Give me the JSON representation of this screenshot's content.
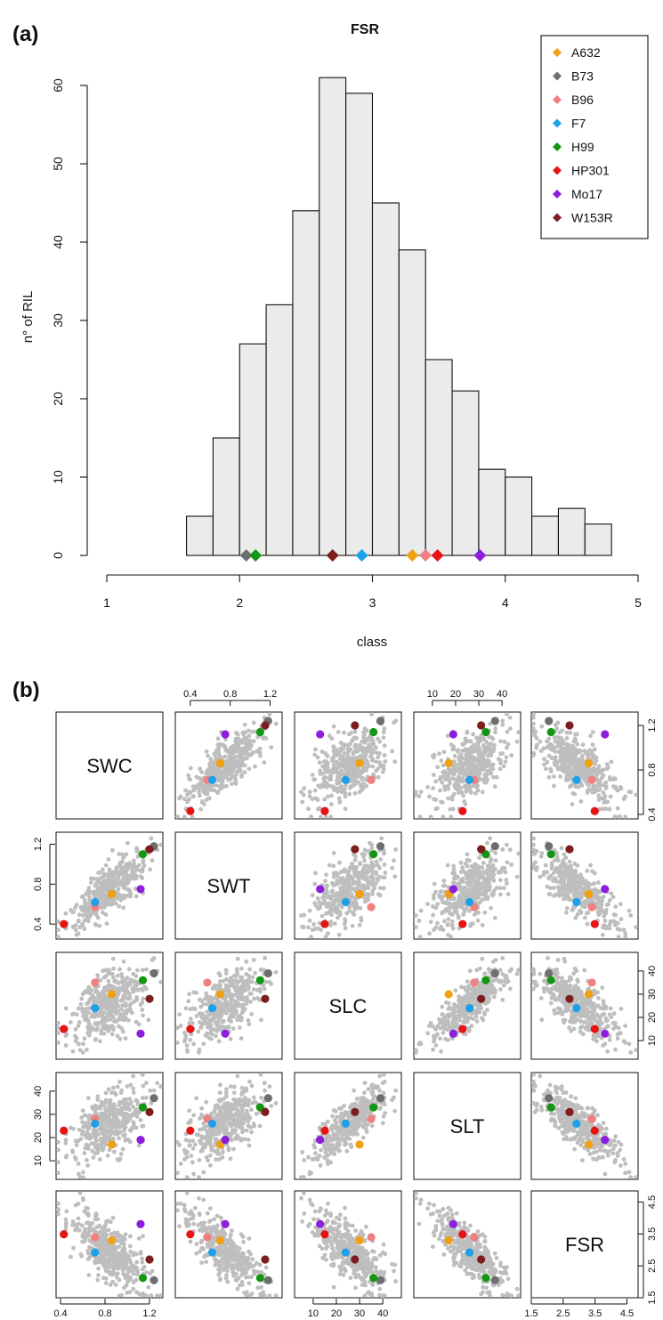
{
  "panel_labels": {
    "a": "(a)",
    "b": "(b)"
  },
  "chart_data": [
    {
      "type": "bar",
      "title": "FSR",
      "xlabel": "class",
      "ylabel": "n° of RIL",
      "bin_edges": [
        1.6,
        1.8,
        2.0,
        2.2,
        2.4,
        2.6,
        2.8,
        3.0,
        3.2,
        3.4,
        3.6,
        3.8,
        4.0,
        4.2,
        4.4,
        4.6,
        4.8
      ],
      "values": [
        5,
        15,
        27,
        32,
        44,
        61,
        59,
        45,
        39,
        25,
        21,
        11,
        10,
        5,
        6,
        4
      ],
      "xlim": [
        1,
        5
      ],
      "ylim": [
        0,
        60
      ],
      "x_ticks": [
        1,
        2,
        3,
        4,
        5
      ],
      "y_ticks": [
        0,
        10,
        20,
        30,
        40,
        50,
        60
      ],
      "bar_color": "#ebebeb",
      "legend_position": "top-right",
      "parents": [
        {
          "name": "A632",
          "color": "#f0a010",
          "fsr": 3.3
        },
        {
          "name": "B73",
          "color": "#6e6e6e",
          "fsr": 2.05
        },
        {
          "name": "B96",
          "color": "#f08080",
          "fsr": 3.4
        },
        {
          "name": "F7",
          "color": "#1ea0e8",
          "fsr": 2.92
        },
        {
          "name": "H99",
          "color": "#149614",
          "fsr": 2.12
        },
        {
          "name": "HP301",
          "color": "#e61414",
          "fsr": 3.49
        },
        {
          "name": "Mo17",
          "color": "#8c1edc",
          "fsr": 3.81
        },
        {
          "name": "W153R",
          "color": "#7d1e1e",
          "fsr": 2.7
        }
      ]
    },
    {
      "type": "scatter",
      "variables": [
        "SWC",
        "SWT",
        "SLC",
        "SLT",
        "FSR"
      ],
      "ranges": [
        [
          0.36,
          1.32
        ],
        [
          0.25,
          1.32
        ],
        [
          2,
          48
        ],
        [
          2,
          48
        ],
        [
          1.5,
          4.85
        ]
      ],
      "tick_values": [
        [
          0.4,
          0.8,
          1.2
        ],
        [
          0.4,
          0.8,
          1.2
        ],
        [
          10,
          20,
          30,
          40
        ],
        [
          10,
          20,
          30,
          40
        ],
        [
          1.5,
          2.5,
          3.5,
          4.5
        ]
      ],
      "tick_labels": {
        "top_panel_2": [
          "0.4",
          "0.8",
          "1.2"
        ],
        "top_panel_4": [
          "10",
          "20",
          "30",
          "40"
        ],
        "right_row_1": [
          "0.4",
          "0.8",
          "1.2"
        ],
        "right_row_3": [
          "10",
          "20",
          "30",
          "40"
        ],
        "right_row_5": [
          "1.5",
          "2.5",
          "3.5",
          "4.5"
        ],
        "left_row_2": [
          "0.4",
          "0.8",
          "1.2"
        ],
        "left_row_4": [
          "10",
          "20",
          "30",
          "40"
        ],
        "bottom_col_1": [
          "0.4",
          "0.8",
          "1.2"
        ],
        "bottom_col_3": [
          "10",
          "20",
          "30",
          "40"
        ],
        "bottom_col_5": [
          "1.5",
          "2.5",
          "3.5",
          "4.5"
        ]
      },
      "parent_values": {
        "A632": [
          0.86,
          0.7,
          30,
          17,
          3.3
        ],
        "B73": [
          1.24,
          1.18,
          39,
          37,
          2.05
        ],
        "B96": [
          0.71,
          0.57,
          35,
          28,
          3.4
        ],
        "F7": [
          0.71,
          0.62,
          24,
          26,
          2.92
        ],
        "H99": [
          1.14,
          1.1,
          36,
          33,
          2.12
        ],
        "HP301": [
          0.43,
          0.4,
          15,
          23,
          3.49
        ],
        "Mo17": [
          1.12,
          0.75,
          13,
          19,
          3.81
        ],
        "W153R": [
          1.2,
          1.15,
          28,
          31,
          2.7
        ]
      },
      "ril_points": 400,
      "ril_color": "#bebebe"
    }
  ]
}
